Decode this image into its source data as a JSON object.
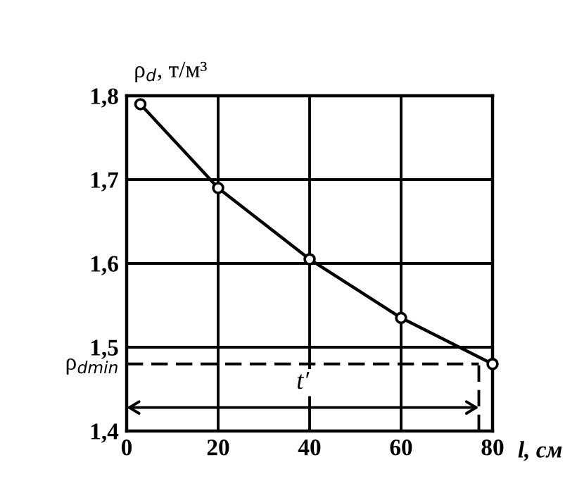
{
  "chart_data": {
    "type": "line",
    "xlabel": "l, см",
    "ylabel": "ρ$_{d}$, т/м³",
    "x": [
      3,
      20,
      40,
      60,
      80
    ],
    "series": [
      {
        "color": "#000000",
        "values": [
          1.79,
          1.69,
          1.605,
          1.535,
          1.48
        ]
      }
    ],
    "marker": "circle",
    "xlim": [
      0,
      80
    ],
    "ylim": [
      1.4,
      1.8
    ],
    "xticks": [
      0,
      20,
      40,
      60,
      80
    ],
    "yticks": [
      {
        "value": 1.4,
        "label": "1,4"
      },
      {
        "value": 1.5,
        "label": "1,5"
      },
      {
        "value": 1.6,
        "label": "1,6"
      },
      {
        "value": 1.7,
        "label": "1,7"
      },
      {
        "value": 1.8,
        "label": "1,8"
      }
    ],
    "grid": true,
    "ref_lines": [
      {
        "axis": "y",
        "value": 1.48,
        "label": "ρ$_{dmin}$",
        "line_style": "dashed"
      },
      {
        "axis": "x",
        "value": 77,
        "label": null,
        "line_style": "dashed"
      }
    ],
    "annotations": [
      "t′"
    ]
  }
}
